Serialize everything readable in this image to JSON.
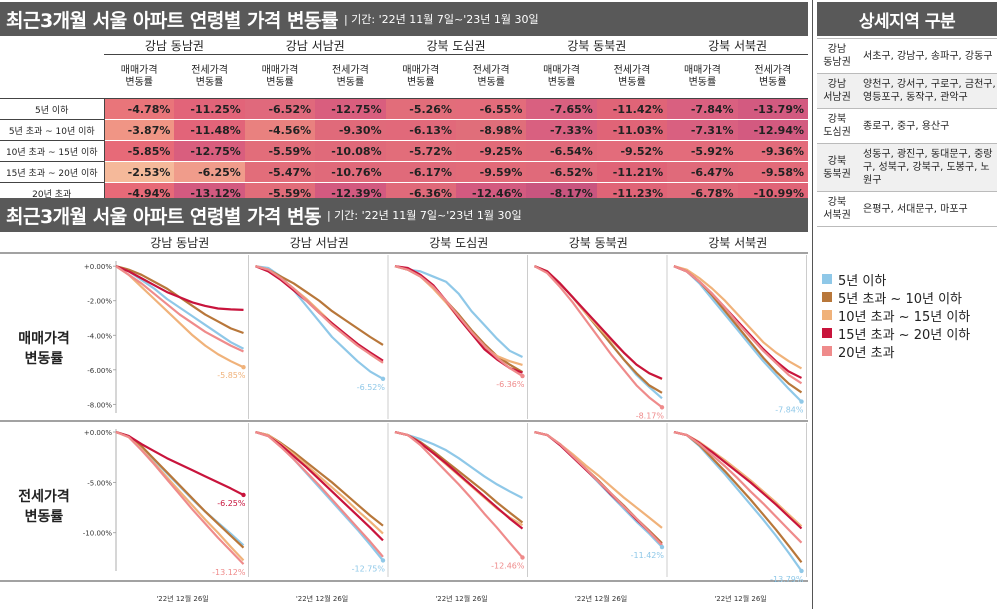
{
  "header1": {
    "title": "최근3개월 서울 아파트 연령별 가격 변동률",
    "period": "| 기간: '22년 11월 7일~'23년 1월 30일"
  },
  "header2": {
    "title": "최근3개월 서울 아파트 연령별 가격 변동",
    "period": "| 기간: '22년 11월 7일~'23년 1월 30일"
  },
  "side_header": "상세지역 구분",
  "regions": [
    "강남 동남권",
    "강남 서남권",
    "강북 도심권",
    "강북 동북권",
    "강북 서북권"
  ],
  "subcols": [
    "매매가격\n변동률",
    "전세가격\n변동률"
  ],
  "age_groups": [
    "5년 이하",
    "5년 초과 ~ 10년 이하",
    "10년 초과 ~ 15년 이하",
    "15년 초과 ~ 20년 이하",
    "20년 초과"
  ],
  "table": [
    [
      "-4.78%",
      "-11.25%",
      "-6.52%",
      "-12.75%",
      "-5.26%",
      "-6.55%",
      "-7.65%",
      "-11.42%",
      "-7.84%",
      "-13.79%"
    ],
    [
      "-3.87%",
      "-11.48%",
      "-4.56%",
      "-9.30%",
      "-6.13%",
      "-8.98%",
      "-7.33%",
      "-11.03%",
      "-7.31%",
      "-12.94%"
    ],
    [
      "-5.85%",
      "-12.75%",
      "-5.59%",
      "-10.08%",
      "-5.72%",
      "-9.25%",
      "-6.54%",
      "-9.52%",
      "-5.92%",
      "-9.36%"
    ],
    [
      "-2.53%",
      "-6.25%",
      "-5.47%",
      "-10.76%",
      "-6.17%",
      "-9.59%",
      "-6.52%",
      "-11.21%",
      "-6.47%",
      "-9.58%"
    ],
    [
      "-4.94%",
      "-13.12%",
      "-5.59%",
      "-12.39%",
      "-6.36%",
      "-12.46%",
      "-8.17%",
      "-11.23%",
      "-6.78%",
      "-10.99%"
    ]
  ],
  "cell_colors": [
    [
      "#e9757a",
      "#e26479",
      "#e0697c",
      "#d95e7e",
      "#e26d7a",
      "#e36c7b",
      "#d96080",
      "#e06477",
      "#d96080",
      "#d35a80"
    ],
    [
      "#f09585",
      "#e26479",
      "#e9817f",
      "#e06a7a",
      "#e1697a",
      "#e06e7a",
      "#d96080",
      "#e06477",
      "#d96080",
      "#d35a80"
    ],
    [
      "#e76a78",
      "#d95e7e",
      "#e26d7a",
      "#e06a7a",
      "#e26d7a",
      "#e26b79",
      "#e06a7a",
      "#e36c7b",
      "#e36c7b",
      "#e36c7b"
    ],
    [
      "#f5b99a",
      "#f09c8b",
      "#e26d7a",
      "#e06a7a",
      "#e06a7a",
      "#e26b79",
      "#e06a7a",
      "#e06477",
      "#e06a7a",
      "#e26b79"
    ],
    [
      "#e76a78",
      "#d35a80",
      "#e26d7a",
      "#d35a80",
      "#e06a7a",
      "#d35a80",
      "#c9557f",
      "#e06477",
      "#e06a7a",
      "#e06477"
    ]
  ],
  "side_regions": [
    {
      "key": "강남\n동남권",
      "value": "서초구, 강남구, 송파구, 강동구"
    },
    {
      "key": "강남\n서남권",
      "value": "양천구, 강서구, 구로구, 금천구, 영등포구, 동작구, 관악구"
    },
    {
      "key": "강북\n도심권",
      "value": "종로구, 중구, 용산구"
    },
    {
      "key": "강북\n동북권",
      "value": "성동구, 광진구, 동대문구, 중랑구, 성북구, 강북구, 도봉구, 노원구"
    },
    {
      "key": "강북\n서북권",
      "value": "은평구, 서대문구, 마포구"
    }
  ],
  "legend": [
    "5년 이하",
    "5년 초과 ~ 10년 이하",
    "10년 초과 ~ 15년 이하",
    "15년 초과 ~ 20년 이하",
    "20년 초과"
  ],
  "series_colors": [
    "#8fc8e8",
    "#b8773a",
    "#f0b27a",
    "#c8143c",
    "#ef8b8b"
  ],
  "chart_data": {
    "type": "line",
    "row_labels": [
      "매매가격\n변동률",
      "전세가격\n변동률"
    ],
    "x_tick_label": "'22년 12월 26일",
    "top": {
      "ylim": [
        -8.5,
        0.3
      ],
      "yticks": [
        "+0.00%",
        "-2.00%",
        "-4.00%",
        "-6.00%",
        "-8.00%"
      ],
      "ytick_values": [
        0,
        -2,
        -4,
        -6,
        -8
      ],
      "series_per_region": [
        [
          [
            0,
            -0.3,
            -0.8,
            -1.3,
            -1.9,
            -2.4,
            -2.9,
            -3.4,
            -3.9,
            -4.4,
            -4.78
          ],
          [
            0,
            -0.2,
            -0.5,
            -0.9,
            -1.3,
            -1.8,
            -2.3,
            -2.8,
            -3.2,
            -3.6,
            -3.87
          ],
          [
            0,
            -0.5,
            -1.2,
            -1.9,
            -2.6,
            -3.3,
            -4.0,
            -4.6,
            -5.1,
            -5.5,
            -5.85
          ],
          [
            0,
            -0.3,
            -0.7,
            -1.1,
            -1.5,
            -1.8,
            -2.1,
            -2.3,
            -2.45,
            -2.5,
            -2.53
          ],
          [
            0,
            -0.5,
            -1.0,
            -1.6,
            -2.2,
            -2.8,
            -3.3,
            -3.8,
            -4.2,
            -4.6,
            -4.94
          ]
        ],
        [
          [
            0,
            -0.1,
            -0.6,
            -1.4,
            -2.3,
            -3.2,
            -4.1,
            -4.8,
            -5.5,
            -6.1,
            -6.52
          ],
          [
            0,
            -0.2,
            -0.6,
            -1.0,
            -1.5,
            -2.0,
            -2.6,
            -3.1,
            -3.6,
            -4.1,
            -4.56
          ],
          [
            0,
            -0.2,
            -0.7,
            -1.3,
            -1.9,
            -2.6,
            -3.3,
            -3.9,
            -4.5,
            -5.1,
            -5.59
          ],
          [
            0,
            -0.3,
            -0.8,
            -1.4,
            -2.0,
            -2.7,
            -3.3,
            -3.9,
            -4.5,
            -5.0,
            -5.47
          ],
          [
            0,
            -0.2,
            -0.7,
            -1.3,
            -2.0,
            -2.7,
            -3.4,
            -4.0,
            -4.6,
            -5.1,
            -5.59
          ]
        ],
        [
          [
            0,
            -0.2,
            -0.3,
            -0.6,
            -0.9,
            -1.6,
            -2.6,
            -3.4,
            -4.2,
            -4.9,
            -5.26
          ],
          [
            0,
            -0.2,
            -0.6,
            -1.2,
            -2.0,
            -2.8,
            -3.7,
            -4.5,
            -5.2,
            -5.7,
            -6.13
          ],
          [
            0,
            -0.2,
            -0.6,
            -1.3,
            -2.1,
            -3.0,
            -3.9,
            -4.7,
            -5.2,
            -5.5,
            -5.72
          ],
          [
            0,
            -0.1,
            -0.5,
            -1.1,
            -2.0,
            -3.0,
            -3.9,
            -4.8,
            -5.4,
            -5.9,
            -6.17
          ],
          [
            0,
            -0.2,
            -0.6,
            -1.2,
            -2.0,
            -2.9,
            -3.8,
            -4.6,
            -5.3,
            -5.9,
            -6.36
          ]
        ],
        [
          [
            0,
            -0.3,
            -1.0,
            -1.8,
            -2.7,
            -3.6,
            -4.5,
            -5.4,
            -6.3,
            -7.0,
            -7.65
          ],
          [
            0,
            -0.3,
            -1.0,
            -1.8,
            -2.7,
            -3.6,
            -4.5,
            -5.4,
            -6.2,
            -6.9,
            -7.33
          ],
          [
            0,
            -0.3,
            -1.0,
            -1.8,
            -2.7,
            -3.5,
            -4.3,
            -5.0,
            -5.7,
            -6.2,
            -6.54
          ],
          [
            0,
            -0.3,
            -1.0,
            -1.8,
            -2.6,
            -3.4,
            -4.2,
            -5.0,
            -5.7,
            -6.2,
            -6.52
          ],
          [
            0,
            -0.4,
            -1.2,
            -2.1,
            -3.1,
            -4.1,
            -5.1,
            -6.0,
            -6.9,
            -7.6,
            -8.17
          ]
        ],
        [
          [
            0,
            -0.3,
            -1.0,
            -1.9,
            -2.8,
            -3.7,
            -4.6,
            -5.5,
            -6.3,
            -7.1,
            -7.84
          ],
          [
            0,
            -0.3,
            -0.9,
            -1.7,
            -2.6,
            -3.5,
            -4.4,
            -5.3,
            -6.1,
            -6.8,
            -7.31
          ],
          [
            0,
            -0.2,
            -0.7,
            -1.3,
            -2.0,
            -2.8,
            -3.6,
            -4.4,
            -5.0,
            -5.5,
            -5.92
          ],
          [
            0,
            -0.3,
            -0.9,
            -1.6,
            -2.4,
            -3.2,
            -4.0,
            -4.8,
            -5.5,
            -6.1,
            -6.47
          ],
          [
            0,
            -0.3,
            -0.9,
            -1.6,
            -2.4,
            -3.3,
            -4.1,
            -4.9,
            -5.6,
            -6.3,
            -6.78
          ]
        ]
      ],
      "end_labels": [
        {
          "text": "-5.85%",
          "series": 2
        },
        {
          "text": "-6.52%",
          "series": 0
        },
        {
          "text": "-6.36%",
          "series": 4
        },
        {
          "text": "-8.17%",
          "series": 4
        },
        {
          "text": "-7.84%",
          "series": 0
        }
      ]
    },
    "bottom": {
      "ylim": [
        -13.8,
        0.3
      ],
      "yticks": [
        "+0.00%",
        "-5.00%",
        "-10.00%"
      ],
      "ytick_values": [
        0,
        -5,
        -10
      ],
      "series_per_region": [
        [
          [
            0,
            -0.4,
            -1.5,
            -2.8,
            -4.1,
            -5.4,
            -6.7,
            -7.9,
            -9.0,
            -10.1,
            -11.25
          ],
          [
            0,
            -0.4,
            -1.4,
            -2.7,
            -4.0,
            -5.3,
            -6.6,
            -7.9,
            -9.1,
            -10.3,
            -11.48
          ],
          [
            0,
            -0.5,
            -1.7,
            -3.1,
            -4.5,
            -5.9,
            -7.3,
            -8.7,
            -10.0,
            -11.4,
            -12.75
          ],
          [
            0,
            -0.4,
            -1.2,
            -1.9,
            -2.6,
            -3.2,
            -3.8,
            -4.4,
            -5.0,
            -5.6,
            -6.25
          ],
          [
            0,
            -0.5,
            -1.8,
            -3.2,
            -4.7,
            -6.2,
            -7.7,
            -9.1,
            -10.5,
            -11.8,
            -13.12
          ]
        ],
        [
          [
            0,
            -0.3,
            -1.4,
            -2.7,
            -4.1,
            -5.5,
            -6.9,
            -8.3,
            -9.7,
            -11.2,
            -12.75
          ],
          [
            0,
            -0.3,
            -1.1,
            -2.0,
            -3.0,
            -4.0,
            -5.0,
            -6.1,
            -7.2,
            -8.3,
            -9.3
          ],
          [
            0,
            -0.3,
            -1.2,
            -2.2,
            -3.3,
            -4.4,
            -5.5,
            -6.6,
            -7.8,
            -8.9,
            -10.08
          ],
          [
            0,
            -0.4,
            -1.3,
            -2.4,
            -3.5,
            -4.7,
            -5.9,
            -7.1,
            -8.3,
            -9.5,
            -10.76
          ],
          [
            0,
            -0.4,
            -1.5,
            -2.7,
            -4.0,
            -5.3,
            -6.7,
            -8.1,
            -9.5,
            -10.9,
            -12.39
          ]
        ],
        [
          [
            0,
            -0.3,
            -0.7,
            -1.2,
            -1.8,
            -2.6,
            -3.5,
            -4.4,
            -5.2,
            -5.9,
            -6.55
          ],
          [
            0,
            -0.3,
            -1.0,
            -1.9,
            -2.9,
            -3.9,
            -4.9,
            -5.9,
            -7.0,
            -8.0,
            -8.98
          ],
          [
            0,
            -0.3,
            -1.1,
            -2.1,
            -3.2,
            -4.3,
            -5.4,
            -6.5,
            -7.6,
            -8.5,
            -9.25
          ],
          [
            0,
            -0.3,
            -1.1,
            -2.1,
            -3.1,
            -4.2,
            -5.3,
            -6.4,
            -7.5,
            -8.6,
            -9.59
          ],
          [
            0,
            -0.3,
            -1.3,
            -2.6,
            -3.9,
            -5.2,
            -6.6,
            -8.1,
            -9.5,
            -11.0,
            -12.46
          ]
        ],
        [
          [
            0,
            -0.3,
            -1.3,
            -2.5,
            -3.7,
            -5.0,
            -6.3,
            -7.6,
            -8.9,
            -10.1,
            -11.42
          ],
          [
            0,
            -0.3,
            -1.2,
            -2.4,
            -3.6,
            -4.8,
            -6.1,
            -7.3,
            -8.6,
            -9.8,
            -11.03
          ],
          [
            0,
            -0.3,
            -1.2,
            -2.2,
            -3.3,
            -4.3,
            -5.4,
            -6.5,
            -7.5,
            -8.5,
            -9.52
          ],
          [
            0,
            -0.3,
            -1.3,
            -2.5,
            -3.7,
            -4.9,
            -6.2,
            -7.4,
            -8.7,
            -9.9,
            -11.21
          ],
          [
            0,
            -0.3,
            -1.2,
            -2.4,
            -3.6,
            -4.9,
            -6.1,
            -7.4,
            -8.6,
            -9.9,
            -11.23
          ]
        ],
        [
          [
            0,
            -0.3,
            -1.4,
            -2.8,
            -4.2,
            -5.7,
            -7.2,
            -8.7,
            -10.3,
            -12.0,
            -13.79
          ],
          [
            0,
            -0.3,
            -1.3,
            -2.6,
            -3.9,
            -5.3,
            -6.7,
            -8.2,
            -9.7,
            -11.3,
            -12.94
          ],
          [
            0,
            -0.3,
            -1.0,
            -1.9,
            -2.8,
            -3.8,
            -4.8,
            -5.9,
            -7.0,
            -8.2,
            -9.36
          ],
          [
            0,
            -0.3,
            -1.1,
            -2.0,
            -3.0,
            -4.0,
            -5.0,
            -6.1,
            -7.2,
            -8.4,
            -9.58
          ],
          [
            0,
            -0.3,
            -1.2,
            -2.3,
            -3.4,
            -4.6,
            -5.9,
            -7.1,
            -8.4,
            -9.7,
            -10.99
          ]
        ]
      ],
      "end_labels": [
        {
          "text": "-6.25%",
          "series": 3
        },
        {
          "text": "-12.75%",
          "series": 0
        },
        {
          "text": "-12.46%",
          "series": 4
        },
        {
          "text": "-11.42%",
          "series": 0
        },
        {
          "text": "-13.79%",
          "series": 0
        }
      ],
      "extra_labels": [
        {
          "region": 0,
          "text": "-13.12%",
          "series": 4
        }
      ]
    }
  }
}
